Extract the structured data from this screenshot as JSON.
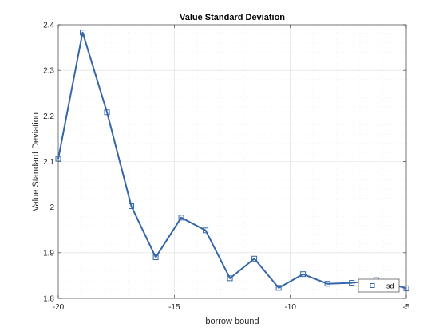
{
  "chart_data": {
    "type": "line",
    "title": "Value Standard Deviation",
    "xlabel": "borrow bound",
    "ylabel": "Value Standard Deviation",
    "xlim": [
      -20,
      -5
    ],
    "ylim": [
      1.8,
      2.4
    ],
    "xticks": [
      -20,
      -15,
      -10,
      -5
    ],
    "xtick_labels": [
      "-20",
      "-15",
      "-10",
      "-5"
    ],
    "yticks": [
      1.8,
      1.9,
      2.0,
      2.1,
      2.2,
      2.3,
      2.4
    ],
    "ytick_labels": [
      "1.8",
      "1.9",
      "2",
      "2.1",
      "2.2",
      "2.3",
      "2.4"
    ],
    "grid": true,
    "minor_grid": true,
    "legend_position": "bottom-right",
    "series": [
      {
        "name": "sd",
        "color": "#3566a8",
        "marker": "square",
        "x": [
          -20,
          -18.95,
          -17.9,
          -16.85,
          -15.8,
          -14.7,
          -13.65,
          -12.6,
          -11.55,
          -10.5,
          -9.45,
          -8.4,
          -7.35,
          -6.3,
          -5.0
        ],
        "y": [
          2.106,
          2.383,
          2.208,
          2.002,
          1.89,
          1.977,
          1.949,
          1.844,
          1.887,
          1.823,
          1.853,
          1.832,
          1.834,
          1.84,
          1.822
        ]
      }
    ]
  },
  "legend": {
    "entries": [
      "sd"
    ]
  }
}
